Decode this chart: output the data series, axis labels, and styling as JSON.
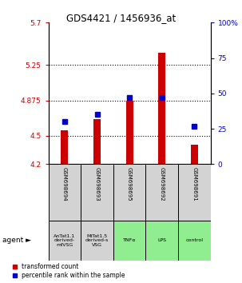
{
  "title": "GDS4421 / 1456936_at",
  "samples": [
    "GSM698694",
    "GSM698693",
    "GSM698695",
    "GSM698692",
    "GSM698691"
  ],
  "agents": [
    "AnTat1.1\nderived-\nmfVSG",
    "MiTat1.5\nderived-s\nVSG",
    "TNFα",
    "LPS",
    "control"
  ],
  "agent_colors": [
    "#d3d3d3",
    "#d3d3d3",
    "#90EE90",
    "#90EE90",
    "#90EE90"
  ],
  "red_values": [
    4.56,
    4.68,
    4.875,
    5.38,
    4.41
  ],
  "blue_values": [
    30,
    35,
    47,
    47,
    27
  ],
  "ylim_left": [
    4.2,
    5.7
  ],
  "ylim_right": [
    0,
    100
  ],
  "yticks_left": [
    4.2,
    4.5,
    4.875,
    5.25,
    5.7
  ],
  "ytick_labels_left": [
    "4.2",
    "4.5",
    "4.875",
    "5.25",
    "5.7"
  ],
  "yticks_right": [
    0,
    25,
    50,
    75,
    100
  ],
  "ytick_labels_right": [
    "0",
    "25",
    "50",
    "75",
    "100%"
  ],
  "hlines": [
    4.5,
    4.875,
    5.25
  ],
  "bar_bottom": 4.2,
  "red_color": "#cc0000",
  "blue_color": "#0000cc",
  "legend_items": [
    "transformed count",
    "percentile rank within the sample"
  ]
}
